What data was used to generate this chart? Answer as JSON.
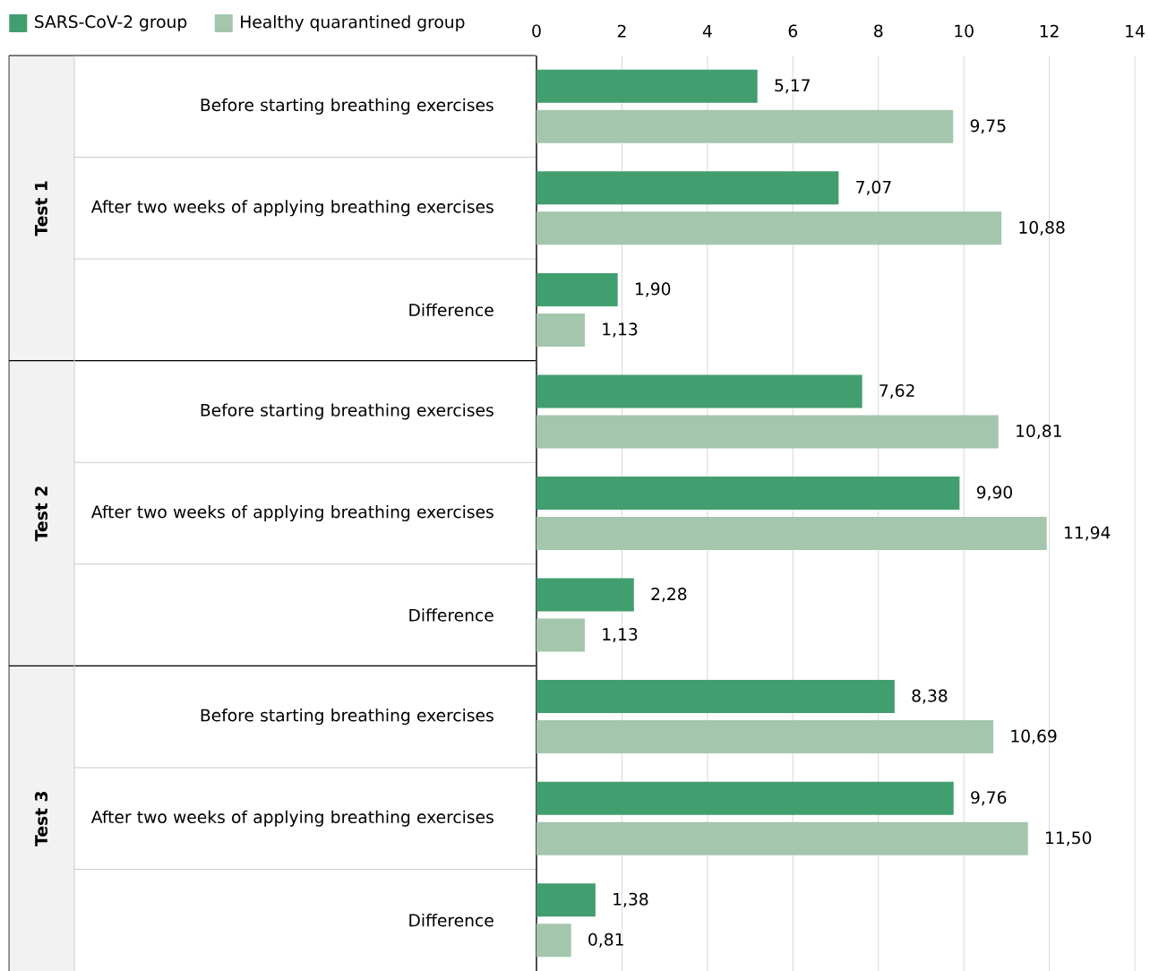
{
  "chart_data": {
    "type": "bar",
    "orientation": "horizontal",
    "categories": [
      "Before starting breathing exercises",
      "After two weeks of applying breathing exercises",
      "Difference",
      "Before starting breathing exercises",
      "After two weeks of applying breathing exercises",
      "Difference",
      "Before starting breathing exercises",
      "After two weeks of applying breathing exercises",
      "Difference"
    ],
    "series": [
      {
        "name": "SARS-CoV-2 group",
        "color": "#419e6f",
        "values": [
          5.17,
          7.07,
          1.9,
          7.62,
          9.9,
          2.28,
          8.38,
          9.76,
          1.38
        ],
        "value_labels": [
          "5,17",
          "7,07",
          "1,90",
          "7,62",
          "9,90",
          "2,28",
          "8,38",
          "9,76",
          "1,38"
        ]
      },
      {
        "name": "Healthy quarantined group",
        "color": "#a3c6ad",
        "values": [
          9.75,
          10.88,
          1.13,
          10.81,
          11.94,
          1.13,
          10.69,
          11.5,
          0.81
        ],
        "value_labels": [
          "9,75",
          "10,88",
          "1,13",
          "10,81",
          "11,94",
          "1,13",
          "10,69",
          "11,50",
          "0,81"
        ]
      }
    ],
    "annotations": [
      "Test 1",
      "Test 2",
      "Test 3"
    ],
    "xlim": [
      0,
      14
    ],
    "xticks": [
      0,
      2,
      4,
      6,
      8,
      10,
      12,
      14
    ],
    "grid": "x",
    "legend": "top left"
  }
}
